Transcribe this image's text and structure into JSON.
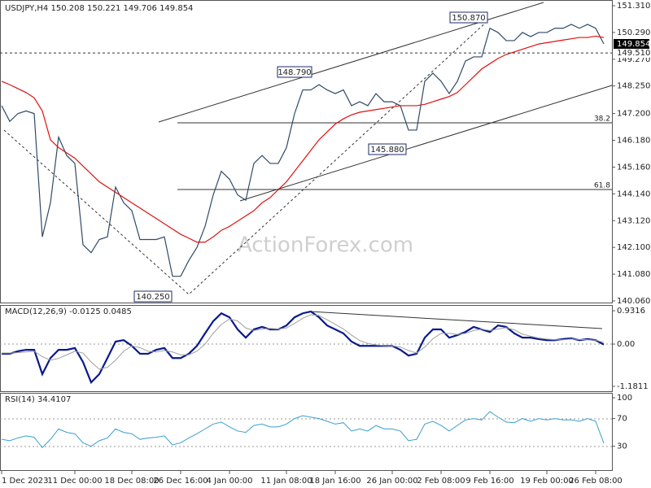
{
  "chart_data": [
    {
      "type": "line",
      "title": "USDJPY,H4  150.208 150.221 149.706 149.854",
      "ylim": [
        139.998,
        151.527
      ],
      "yticks": [
        {
          "value": 151.31,
          "label": "151.310"
        },
        {
          "value": 150.29,
          "label": "150.290"
        },
        {
          "value": 149.27,
          "label": "149.270"
        },
        {
          "value": 148.25,
          "label": "148.250"
        },
        {
          "value": 147.2,
          "label": "147.200"
        },
        {
          "value": 146.18,
          "label": "146.180"
        },
        {
          "value": 145.16,
          "label": "145.160"
        },
        {
          "value": 144.14,
          "label": "144.140"
        },
        {
          "value": 143.12,
          "label": "143.120"
        },
        {
          "value": 142.1,
          "label": "142.100"
        },
        {
          "value": 141.08,
          "label": "141.080"
        },
        {
          "value": 140.06,
          "label": "140.060"
        }
      ],
      "last_price": 149.854,
      "ref_line": {
        "value": 149.51,
        "label": "149.510"
      },
      "annotations": [
        "150.870",
        "148.790",
        "145.880",
        "140.250",
        "38.2",
        "61.8"
      ],
      "watermark": "ActionForex.com",
      "series": [
        {
          "name": "USDJPY",
          "color": "#2f4a66",
          "values": [
            147.5,
            146.9,
            147.2,
            147.3,
            147.2,
            142.5,
            143.8,
            146.3,
            145.6,
            145.3,
            142.2,
            141.9,
            142.4,
            142.5,
            144.4,
            143.8,
            143.5,
            142.4,
            142.4,
            142.4,
            142.5,
            141.0,
            141.0,
            141.6,
            142.1,
            142.9,
            144.1,
            145.0,
            144.7,
            144.1,
            143.9,
            145.3,
            145.6,
            145.3,
            145.3,
            145.9,
            147.2,
            148.1,
            148.1,
            148.3,
            148.1,
            147.96,
            148.1,
            147.5,
            147.65,
            147.5,
            147.96,
            147.65,
            147.65,
            147.5,
            146.57,
            146.57,
            148.43,
            148.74,
            148.43,
            147.96,
            148.43,
            149.2,
            149.36,
            149.36,
            150.45,
            150.29,
            149.98,
            149.98,
            150.29,
            150.13,
            150.29,
            150.29,
            150.45,
            150.45,
            150.6,
            150.45,
            150.6,
            150.45,
            149.854
          ]
        },
        {
          "name": "MA",
          "color": "#e01010",
          "values": [
            148.43,
            148.3,
            148.15,
            148.0,
            147.8,
            147.3,
            146.2,
            145.9,
            145.7,
            145.5,
            145.2,
            144.9,
            144.6,
            144.4,
            144.2,
            144.0,
            143.8,
            143.6,
            143.4,
            143.2,
            143.0,
            142.8,
            142.6,
            142.45,
            142.3,
            142.3,
            142.5,
            142.75,
            142.9,
            143.1,
            143.3,
            143.5,
            143.8,
            144.0,
            144.3,
            144.6,
            145.0,
            145.4,
            145.8,
            146.2,
            146.5,
            146.8,
            147.0,
            147.15,
            147.25,
            147.3,
            147.35,
            147.4,
            147.45,
            147.5,
            147.5,
            147.5,
            147.55,
            147.65,
            147.75,
            147.85,
            148.0,
            148.3,
            148.6,
            148.9,
            149.1,
            149.3,
            149.45,
            149.55,
            149.65,
            149.75,
            149.85,
            149.9,
            149.95,
            150.0,
            150.05,
            150.1,
            150.1,
            150.15,
            150.1
          ]
        }
      ]
    },
    {
      "type": "line",
      "title": "MACD(12,26,9) -0.0125 0.0485",
      "ylim": [
        -1.34,
        1.07
      ],
      "yticks": [
        0.9316,
        {
          "value": 0,
          "label": "0.00"
        },
        -1.1811
      ],
      "series": [
        {
          "name": "MACD",
          "color": "#0a1a8c",
          "width": 2.2,
          "values": [
            -0.27,
            -0.27,
            -0.2,
            -0.16,
            -0.16,
            -0.84,
            -0.39,
            -0.16,
            -0.16,
            -0.11,
            -0.5,
            -1.07,
            -0.84,
            -0.39,
            0.07,
            0.11,
            -0.05,
            -0.27,
            -0.27,
            -0.16,
            -0.11,
            -0.39,
            -0.39,
            -0.27,
            -0.05,
            0.3,
            0.64,
            0.86,
            0.75,
            0.41,
            0.18,
            0.41,
            0.48,
            0.41,
            0.41,
            0.52,
            0.75,
            0.86,
            0.91,
            0.75,
            0.52,
            0.41,
            0.3,
            0.07,
            -0.05,
            -0.05,
            -0.05,
            -0.05,
            -0.05,
            -0.16,
            -0.32,
            -0.27,
            0.18,
            0.41,
            0.41,
            0.18,
            0.25,
            0.34,
            0.48,
            0.41,
            0.34,
            0.52,
            0.48,
            0.3,
            0.18,
            0.18,
            0.14,
            0.11,
            0.11,
            0.14,
            0.16,
            0.11,
            0.14,
            0.11,
            -0.0125
          ]
        },
        {
          "name": "Signal",
          "color": "#a0a0a0",
          "width": 1,
          "values": [
            -0.25,
            -0.25,
            -0.24,
            -0.22,
            -0.2,
            -0.35,
            -0.45,
            -0.4,
            -0.3,
            -0.2,
            -0.25,
            -0.5,
            -0.7,
            -0.65,
            -0.45,
            -0.2,
            -0.05,
            -0.1,
            -0.2,
            -0.22,
            -0.18,
            -0.22,
            -0.3,
            -0.3,
            -0.2,
            0,
            0.3,
            0.55,
            0.7,
            0.65,
            0.45,
            0.38,
            0.42,
            0.44,
            0.42,
            0.45,
            0.58,
            0.72,
            0.82,
            0.8,
            0.68,
            0.55,
            0.42,
            0.25,
            0.1,
            0.02,
            -0.02,
            -0.04,
            -0.05,
            -0.08,
            -0.18,
            -0.25,
            -0.08,
            0.15,
            0.3,
            0.3,
            0.27,
            0.3,
            0.38,
            0.42,
            0.38,
            0.42,
            0.46,
            0.4,
            0.28,
            0.22,
            0.17,
            0.14,
            0.12,
            0.12,
            0.14,
            0.13,
            0.12,
            0.11,
            0.0485
          ]
        }
      ]
    },
    {
      "type": "line",
      "title": "RSI(14) 34.4107",
      "ylim": [
        -4.4,
        105.9
      ],
      "yticks": [
        100,
        70,
        30
      ],
      "categories": [
        "1 Dec 2023",
        null,
        null,
        null,
        null,
        null,
        null,
        null,
        null,
        "11 Dec 00:00",
        null,
        null,
        null,
        null,
        null,
        null,
        "18 Dec 08:00",
        null,
        null,
        null,
        null,
        null,
        "26 Dec 16:00",
        null,
        null,
        null,
        null,
        null,
        "4 Jan 00:00",
        null,
        null,
        null,
        null,
        null,
        null,
        "11 Jan 08:00",
        null,
        null,
        null,
        null,
        null,
        "18 Jan 16:00",
        null,
        null,
        null,
        null,
        null,
        null,
        "26 Jan 00:00",
        null,
        null,
        null,
        null,
        null,
        "2 Feb 08:00",
        null,
        null,
        null,
        null,
        null,
        "9 Feb 16:00",
        null,
        null,
        null,
        null,
        null,
        null,
        "19 Feb 00:00",
        null,
        null,
        null,
        null,
        null,
        "26 Feb 08:00",
        null
      ],
      "series": [
        {
          "name": "RSI",
          "color": "#3a9fd0",
          "width": 1,
          "values": [
            40,
            38,
            42,
            45,
            43,
            28,
            40,
            55,
            50,
            48,
            35,
            30,
            38,
            42,
            55,
            50,
            48,
            40,
            42,
            43,
            45,
            32,
            35,
            42,
            48,
            55,
            62,
            65,
            58,
            52,
            50,
            60,
            62,
            58,
            58,
            62,
            70,
            74,
            72,
            70,
            66,
            62,
            64,
            52,
            55,
            52,
            60,
            55,
            55,
            52,
            38,
            40,
            62,
            66,
            60,
            52,
            60,
            68,
            70,
            68,
            80,
            72,
            65,
            64,
            70,
            66,
            70,
            68,
            70,
            68,
            68,
            66,
            70,
            66,
            34.4107
          ]
        }
      ]
    }
  ]
}
